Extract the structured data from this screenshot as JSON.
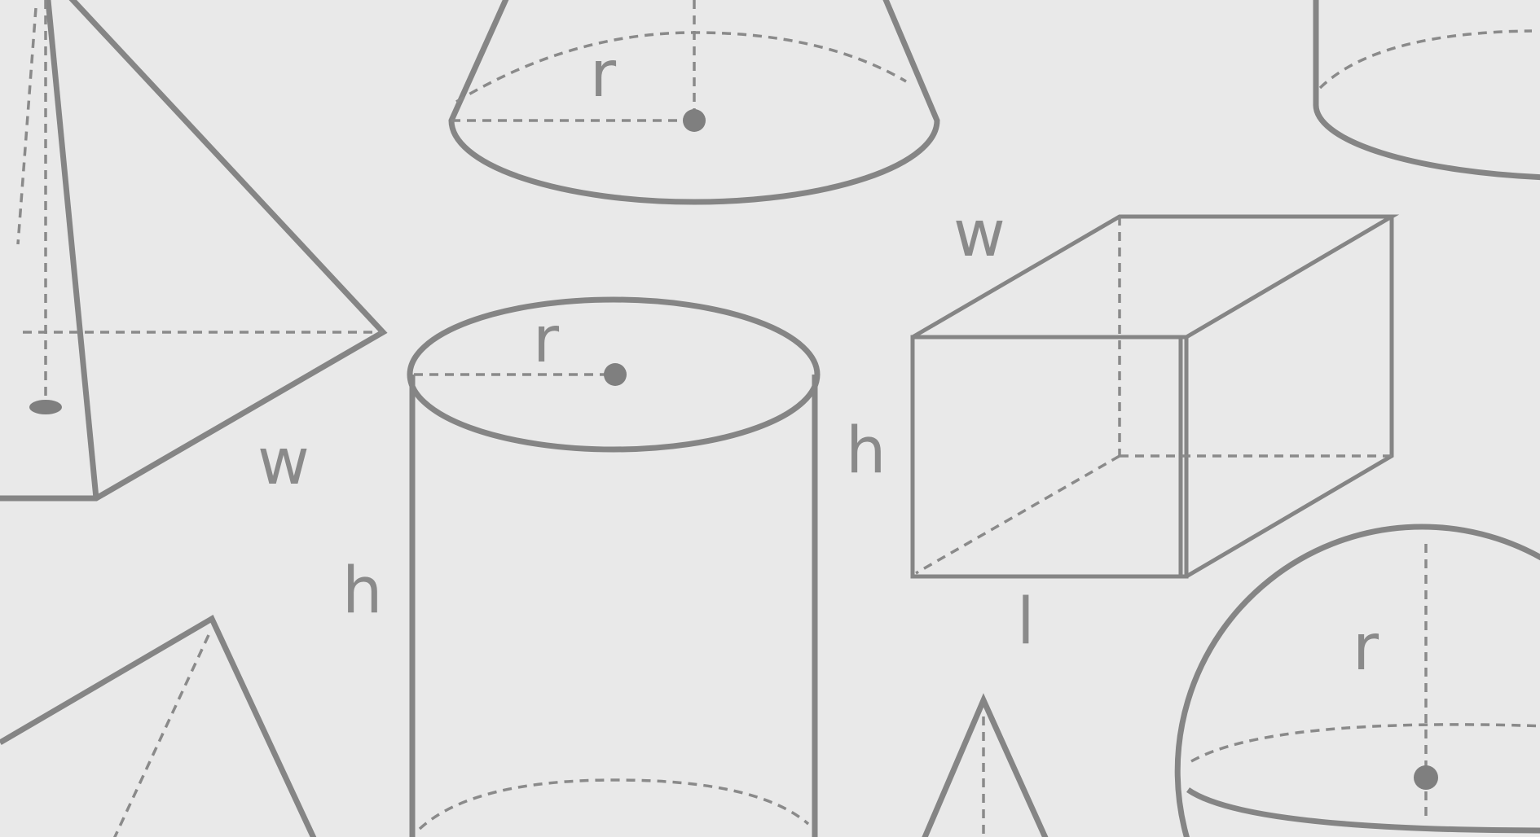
{
  "labels": {
    "pyramid_w": "w",
    "cone_r": "r",
    "cylinder_r": "r",
    "cylinder_h": "h",
    "cylinder_h_left": "h",
    "box_w": "w",
    "box_l": "l",
    "sphere_r": "r"
  },
  "colors": {
    "background": "#e9e9e9",
    "line": "#858585"
  }
}
